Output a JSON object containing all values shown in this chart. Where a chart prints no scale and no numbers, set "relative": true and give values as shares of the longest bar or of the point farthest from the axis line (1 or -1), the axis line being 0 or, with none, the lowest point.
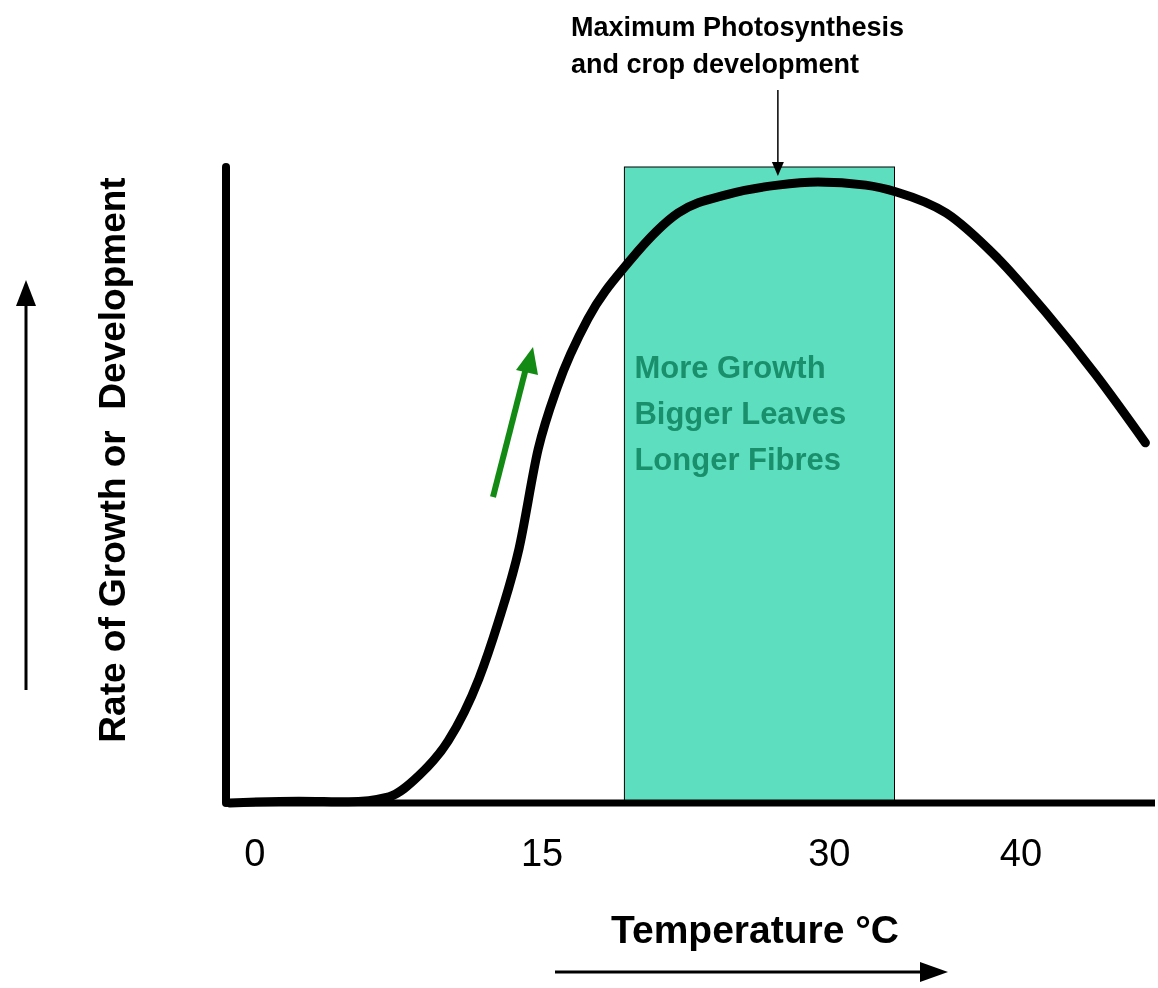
{
  "chart_data": {
    "type": "line",
    "relative": true,
    "xlabel": "Temperature °C",
    "ylabel": "Rate of Growth or  Development",
    "xlim": [
      -1.5,
      47
    ],
    "xticks": [
      0,
      15,
      30,
      40
    ],
    "grid": false,
    "marker": "none",
    "line_style": "solid",
    "x": [
      -1.3,
      2.3,
      4.9,
      7.0,
      8.6,
      10.1,
      11.7,
      12.7,
      13.8,
      14.8,
      15.8,
      17.4,
      19.5,
      22.1,
      24.7,
      27.3,
      29.4,
      31.9,
      33.5,
      36.1,
      38.7,
      41.3,
      43.9,
      46.5
    ],
    "series": [
      {
        "color": "#000000",
        "values": [
          0,
          0.003,
          0.002,
          0.01,
          0.045,
          0.1,
          0.2,
          0.29,
          0.41,
          0.57,
          0.67,
          0.78,
          0.87,
          0.95,
          0.98,
          0.995,
          1,
          0.995,
          0.984,
          0.95,
          0.88,
          0.79,
          0.69,
          0.58
        ]
      }
    ],
    "bands": [
      {
        "axis": "x",
        "from": 19.3,
        "to": 33.4,
        "label": "More Growth\nBigger Leaves\nLonger Fibres",
        "color": "#5ddfbf"
      }
    ],
    "annotations": [
      "Maximum Photosynthesis\nand crop development"
    ]
  }
}
